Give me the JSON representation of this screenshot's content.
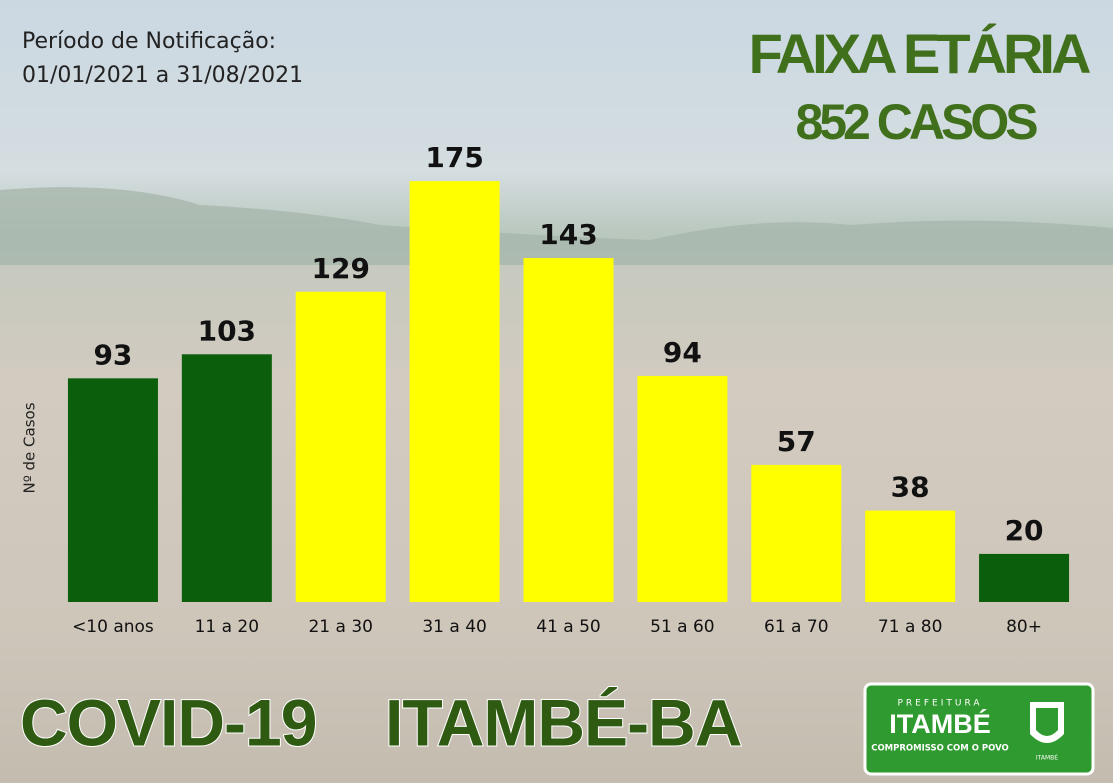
{
  "header": {
    "period_label": "Período de Notificação:",
    "period_range": "01/01/2021 a 31/08/2021"
  },
  "chart_data": {
    "type": "bar",
    "title": "FAIXA ETÁRIA",
    "subtitle": "852 CASOS",
    "y_label": "Nº de Casos",
    "categories": [
      "<10 anos",
      "11 a 20",
      "21 a 30",
      "31 a 40",
      "41 a 50",
      "51 a 60",
      "61 a 70",
      "71 a 80",
      "80+"
    ],
    "values": [
      93,
      103,
      129,
      175,
      143,
      94,
      57,
      38,
      20
    ],
    "colors": [
      "#0b5e0b",
      "#0b5e0b",
      "#ffff00",
      "#ffff00",
      "#ffff00",
      "#ffff00",
      "#ffff00",
      "#ffff00",
      "#0b5e0b"
    ],
    "ylim": [
      0,
      200
    ]
  },
  "footer": {
    "title_left": "COVID-19",
    "title_right": "ITAMBÉ-BA",
    "logo": {
      "top": "PREFEITURA",
      "name": "ITAMBÉ",
      "motto": "COMPROMISSO COM O POVO",
      "crest": "ITAMBÉ"
    }
  }
}
